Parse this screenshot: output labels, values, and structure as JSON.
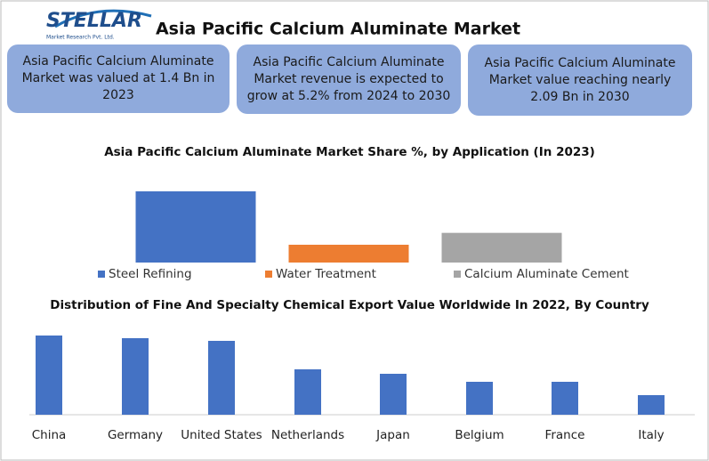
{
  "header": {
    "logo": "STELLAR",
    "logo_tagline": "Market Research Pvt. Ltd.",
    "title": "Asia Pacific Calcium Aluminate Market"
  },
  "info_boxes": [
    "Asia Pacific Calcium Aluminate Market was valued at 1.4 Bn in 2023",
    "Asia Pacific Calcium Aluminate Market revenue is expected to grow at 5.2% from 2024 to 2030",
    "Asia Pacific Calcium Aluminate Market value reaching nearly 2.09 Bn in 2030"
  ],
  "chart_data": [
    {
      "type": "bar",
      "title": "Asia Pacific Calcium Aluminate Market Share %, by Application (In 2023)",
      "categories": [
        "Steel Refining",
        "Water Treatment",
        "Calcium Aluminate Cement"
      ],
      "values": [
        60,
        15,
        25
      ],
      "colors": [
        "#4472c4",
        "#ed7d31",
        "#a5a5a5"
      ],
      "legend": "bottom"
    },
    {
      "type": "bar",
      "title": "Distribution of Fine And Specialty Chemical Export Value Worldwide In 2022, By Country",
      "categories": [
        "China",
        "Germany",
        "United States",
        "Netherlands",
        "Japan",
        "Belgium",
        "France",
        "Italy"
      ],
      "values": [
        89,
        86,
        83,
        51,
        46,
        37,
        37,
        22
      ],
      "color": "#4472c4"
    }
  ]
}
